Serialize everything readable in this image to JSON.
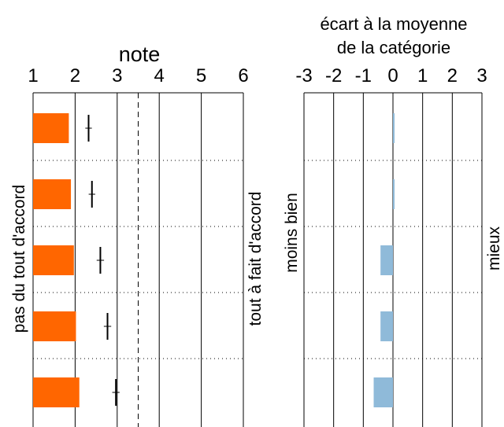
{
  "chart_data": [
    {
      "type": "bar",
      "title": "note",
      "xlabel": "",
      "ylabel": "",
      "xlim": [
        1,
        6
      ],
      "x_ticks": [
        1,
        2,
        3,
        4,
        5,
        6
      ],
      "reference_line": 3.5,
      "left_side_label": "pas du tout d'accord",
      "right_side_label": "tout à fait d'accord",
      "bar_color": "#FF6600",
      "grid": true,
      "rows": [
        {
          "value": 1.85,
          "marker": 2.32,
          "marker_spread": 0.04
        },
        {
          "value": 1.9,
          "marker": 2.4,
          "marker_spread": 0.04
        },
        {
          "value": 1.97,
          "marker": 2.6,
          "marker_spread": 0.05
        },
        {
          "value": 2.02,
          "marker": 2.77,
          "marker_spread": 0.05
        },
        {
          "value": 2.1,
          "marker": 2.97,
          "marker_spread": 0.05
        }
      ]
    },
    {
      "type": "bar",
      "title": "écart à la moyenne de la catégorie",
      "title_lines": [
        "écart à la moyenne",
        "de la catégorie"
      ],
      "xlabel": "",
      "ylabel": "",
      "xlim": [
        -3,
        3
      ],
      "x_ticks": [
        -3,
        -2,
        -1,
        0,
        1,
        2,
        3
      ],
      "left_side_label": "moins bien",
      "right_side_label": "mieux",
      "bar_color": "#8FBAD9",
      "grid": true,
      "rows": [
        {
          "value": 0.03
        },
        {
          "value": 0.03
        },
        {
          "value": -0.42
        },
        {
          "value": -0.42
        },
        {
          "value": -0.65
        }
      ]
    }
  ]
}
